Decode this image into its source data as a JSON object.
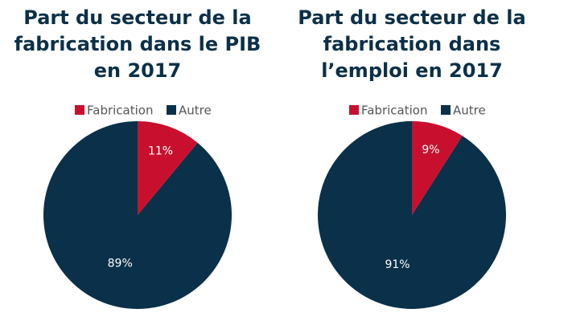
{
  "chart_data": [
    {
      "type": "pie",
      "title": "Part du secteur de la\nfabrication dans le PIB\nen 2017",
      "categories": [
        "Fabrication",
        "Autre"
      ],
      "values": [
        11,
        89
      ],
      "value_labels": [
        "11%",
        "89%"
      ],
      "colors": [
        "#c8102e",
        "#0b3049"
      ]
    },
    {
      "type": "pie",
      "title": "Part du secteur de la\nfabrication dans\nl’emploi en 2017",
      "categories": [
        "Fabrication",
        "Autre"
      ],
      "values": [
        9,
        91
      ],
      "value_labels": [
        "9%",
        "91%"
      ],
      "colors": [
        "#c8102e",
        "#0b3049"
      ]
    }
  ]
}
